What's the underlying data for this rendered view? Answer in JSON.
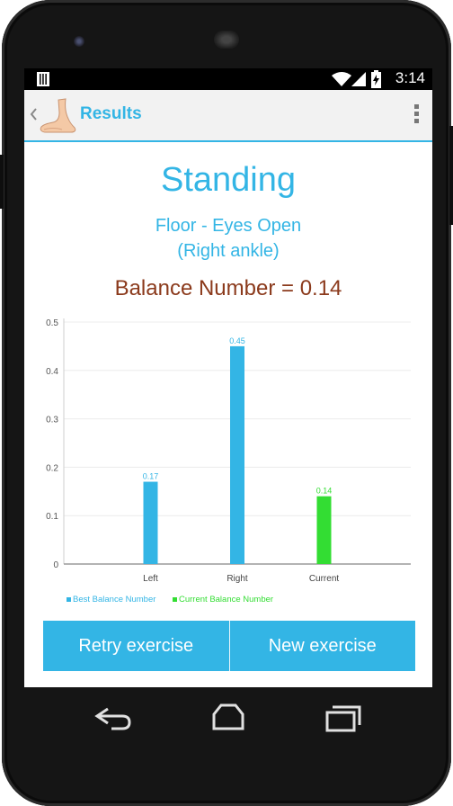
{
  "status": {
    "time": "3:14"
  },
  "actionbar": {
    "title": "Results"
  },
  "content": {
    "heading": "Standing",
    "subtitle_line1": "Floor - Eyes Open",
    "subtitle_line2": "(Right ankle)",
    "balance_text": "Balance Number = 0.14"
  },
  "chart_data": {
    "type": "bar",
    "categories": [
      "Left",
      "Right",
      "Current"
    ],
    "values": [
      0.17,
      0.45,
      0.14
    ],
    "data_labels": [
      "0.17",
      "0.45",
      "0.14"
    ],
    "series_of_category": [
      "Best Balance Number",
      "Best Balance Number",
      "Current Balance Number"
    ],
    "legend": [
      {
        "name": "Best Balance Number",
        "color": "#33b5e5"
      },
      {
        "name": "Current Balance Number",
        "color": "#33dd33"
      }
    ],
    "yticks": [
      "0",
      "0.1",
      "0.2",
      "0.3",
      "0.4",
      "0.5"
    ],
    "ylim": [
      0,
      0.5
    ],
    "grid": true,
    "legend_position": "bottom-left",
    "colors": {
      "best": "#33b5e5",
      "current": "#33dd33"
    }
  },
  "buttons": {
    "retry": "Retry exercise",
    "new": "New exercise"
  },
  "theme": {
    "accent": "#33b5e5",
    "balance_color": "#8b3a1c"
  },
  "icons": {
    "status_left": "notification-icon",
    "wifi": "wifi-icon",
    "signal": "signal-icon",
    "battery": "battery-charging-icon",
    "back": "back-chevron-icon",
    "app": "foot-logo-icon",
    "menu": "overflow-menu-icon",
    "nav_back": "nav-back-icon",
    "nav_home": "nav-home-icon",
    "nav_recent": "nav-recent-apps-icon"
  }
}
